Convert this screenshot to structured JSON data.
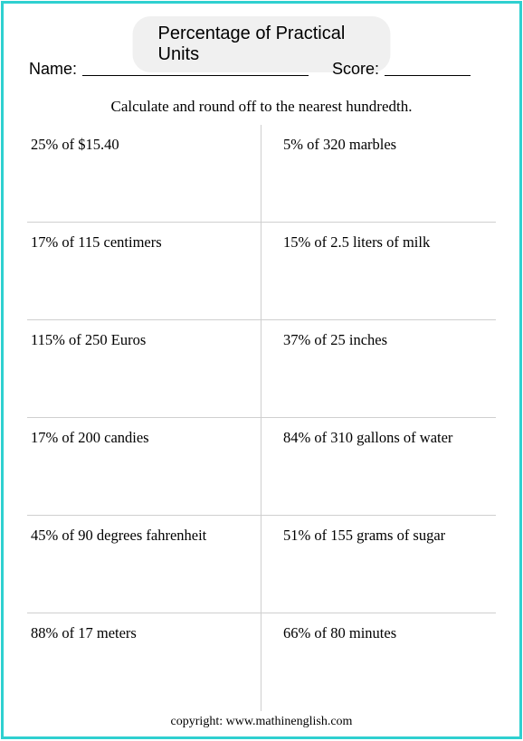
{
  "title": "Percentage of Practical Units",
  "name_label": "Name:",
  "score_label": "Score:",
  "instruction": "Calculate and round off to the nearest hundredth.",
  "rows": [
    {
      "left": "25% of $15.40",
      "right": "5% of  320 marbles"
    },
    {
      "left": "17% of 115 centimers",
      "right": "15% of 2.5 liters of milk"
    },
    {
      "left": "115% of 250 Euros",
      "right": "37% of 25 inches"
    },
    {
      "left": "17% of 200 candies",
      "right": "84% of 310 gallons of water"
    },
    {
      "left": "45% of 90 degrees fahrenheit",
      "right": "51% of 155 grams of sugar"
    },
    {
      "left": "88% of 17 meters",
      "right": "66% of  80 minutes"
    }
  ],
  "copyright": "copyright:    www.mathinenglish.com"
}
